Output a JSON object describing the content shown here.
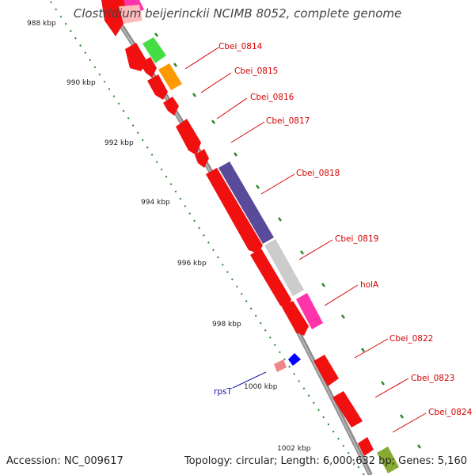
{
  "title": "Clostridium beijerinckii NCIMB 8052, complete genome",
  "footer": {
    "accession": "Accession: NC_009617",
    "summary": "Topology: circular; Length: 6,000,632 bp; Genes: 5,160"
  },
  "ticks": [
    "988 kbp",
    "990 kbp",
    "992 kbp",
    "994 kbp",
    "996 kbp",
    "998 kbp",
    "1000 kbp",
    "1002 kbp"
  ],
  "gene_labels": [
    "Cbei_0814",
    "Cbei_0815",
    "Cbei_0816",
    "Cbei_0817",
    "Cbei_0818",
    "Cbei_0819",
    "holA",
    "Cbei_0822",
    "Cbei_0823",
    "Cbei_0824",
    "rpsT"
  ],
  "colors": {
    "backbone": "#8c8c8c",
    "cds": "#f01010",
    "tick_dots": "#2a8a2a",
    "gene_label": "#d40000",
    "rpsT_label": "#1a1aaa",
    "purple": "#5a4a9a",
    "grey_feature": "#cccccc",
    "pink": "#ff33aa",
    "green": "#44dd44",
    "orange": "#ff9900",
    "light_pink": "#ffbbbb",
    "blue": "#0000ff"
  }
}
